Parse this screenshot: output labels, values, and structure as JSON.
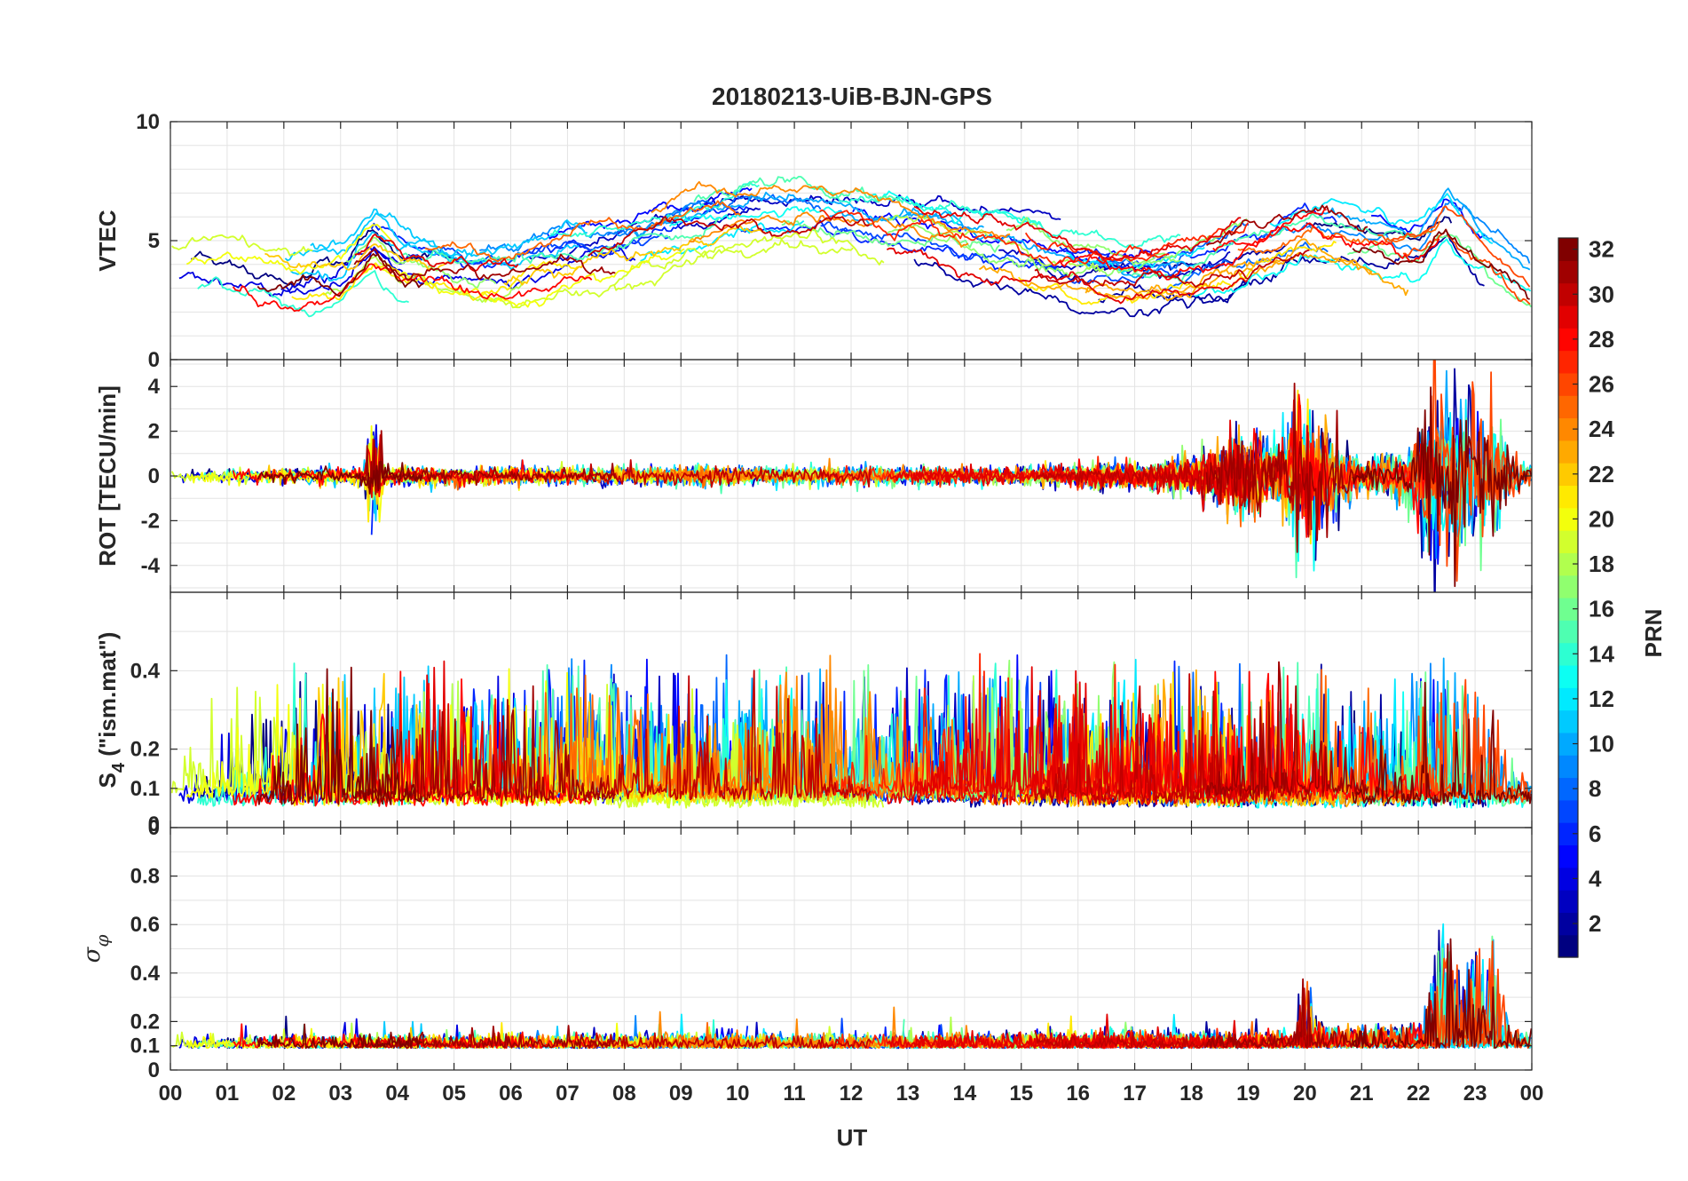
{
  "chart_data": {
    "type": "line",
    "title": "20180213-UiB-BJN-GPS",
    "xlabel": "UT",
    "x_ticks": [
      "00",
      "01",
      "02",
      "03",
      "04",
      "05",
      "06",
      "07",
      "08",
      "09",
      "10",
      "11",
      "12",
      "13",
      "14",
      "15",
      "16",
      "17",
      "18",
      "19",
      "20",
      "21",
      "22",
      "23",
      "00"
    ],
    "xlim": [
      0,
      24
    ],
    "panels": [
      {
        "ylabel": "VTEC",
        "ylim": [
          0,
          10
        ],
        "y_ticks": [
          0,
          5,
          10
        ],
        "y_tick_labels": [
          "0",
          "5",
          "10"
        ],
        "minor_grid": [
          1,
          2,
          3,
          4,
          6,
          7,
          8,
          9
        ],
        "baseline": [
          [
            0,
            3.8
          ],
          [
            1,
            4.0
          ],
          [
            2,
            3.5
          ],
          [
            3,
            3.6
          ],
          [
            3.6,
            5.0
          ],
          [
            4,
            4.2
          ],
          [
            5,
            3.8
          ],
          [
            6,
            3.6
          ],
          [
            7,
            4.3
          ],
          [
            8,
            4.6
          ],
          [
            9,
            5.2
          ],
          [
            10,
            5.8
          ],
          [
            11,
            6.0
          ],
          [
            12,
            5.8
          ],
          [
            13,
            5.5
          ],
          [
            14,
            5.0
          ],
          [
            15,
            4.4
          ],
          [
            16,
            3.8
          ],
          [
            17,
            3.6
          ],
          [
            18,
            4.0
          ],
          [
            19,
            4.8
          ],
          [
            20,
            5.6
          ],
          [
            21,
            5.2
          ],
          [
            22,
            4.8
          ],
          [
            22.5,
            6.0
          ],
          [
            23,
            5.0
          ],
          [
            24,
            3.2
          ]
        ],
        "spread": 1.3,
        "noise": 0.25
      },
      {
        "ylabel": "ROT [TECU/min]",
        "ylim": [
          -5.2,
          5.2
        ],
        "y_ticks": [
          -4,
          -2,
          0,
          2,
          4
        ],
        "y_tick_labels": [
          "-4",
          "-2",
          "0",
          "2",
          "4"
        ],
        "minor_grid": [
          -5,
          -3,
          -1,
          1,
          3,
          5
        ],
        "baseline": [
          [
            0,
            0
          ],
          [
            24,
            0
          ]
        ],
        "activity": [
          [
            0,
            0.15
          ],
          [
            3.4,
            0.2
          ],
          [
            3.6,
            1.4
          ],
          [
            3.8,
            0.2
          ],
          [
            15,
            0.2
          ],
          [
            17.5,
            0.3
          ],
          [
            18.5,
            0.7
          ],
          [
            19,
            1.2
          ],
          [
            19.5,
            0.8
          ],
          [
            20,
            1.8
          ],
          [
            20.5,
            1.0
          ],
          [
            21,
            0.4
          ],
          [
            21.8,
            0.6
          ],
          [
            22.3,
            2.2
          ],
          [
            22.8,
            1.8
          ],
          [
            23.3,
            1.6
          ],
          [
            23.7,
            0.5
          ],
          [
            24,
            0.3
          ]
        ]
      },
      {
        "ylabel": "S_4 (\"ism.mat\")",
        "ylabel_main": "S",
        "ylabel_sub": "4",
        "ylabel_rest": " (\"ism.mat\")",
        "ylim": [
          0,
          0.6
        ],
        "y_ticks": [
          0,
          0.1,
          0.2,
          0.4
        ],
        "y_tick_labels": [
          "0",
          "0.1",
          "0.2",
          "0.4"
        ],
        "y_ticks_extra": [
          0.004
        ],
        "minor_grid": [
          0.3,
          0.5
        ],
        "baseline": [
          [
            0,
            0.06
          ],
          [
            24,
            0.06
          ]
        ]
      },
      {
        "ylabel": "σ_φ",
        "ylabel_main": "σ",
        "ylabel_sub": "φ",
        "ylim": [
          0,
          1
        ],
        "y_ticks": [
          0,
          0.1,
          0.2,
          0.4,
          0.6,
          0.8
        ],
        "y_tick_labels": [
          "0",
          "0.1",
          "0.2",
          "0.4",
          "0.6",
          "0.8"
        ],
        "minor_grid": [
          0.3,
          0.5,
          0.7,
          0.9
        ],
        "baseline": [
          [
            0,
            0.1
          ],
          [
            24,
            0.1
          ]
        ],
        "activity": [
          [
            0,
            0.02
          ],
          [
            19.8,
            0.03
          ],
          [
            20,
            0.2
          ],
          [
            20.3,
            0.05
          ],
          [
            22.1,
            0.05
          ],
          [
            22.4,
            0.35
          ],
          [
            22.8,
            0.2
          ],
          [
            23.3,
            0.3
          ],
          [
            23.6,
            0.05
          ],
          [
            24,
            0.02
          ]
        ]
      }
    ],
    "colorbar": {
      "label": "PRN",
      "min": 1,
      "max": 32,
      "ticks": [
        2,
        4,
        6,
        8,
        10,
        12,
        14,
        16,
        18,
        20,
        22,
        24,
        26,
        28,
        30,
        32
      ],
      "colormap": "jet"
    },
    "n_satellites": 32,
    "grid": true
  }
}
